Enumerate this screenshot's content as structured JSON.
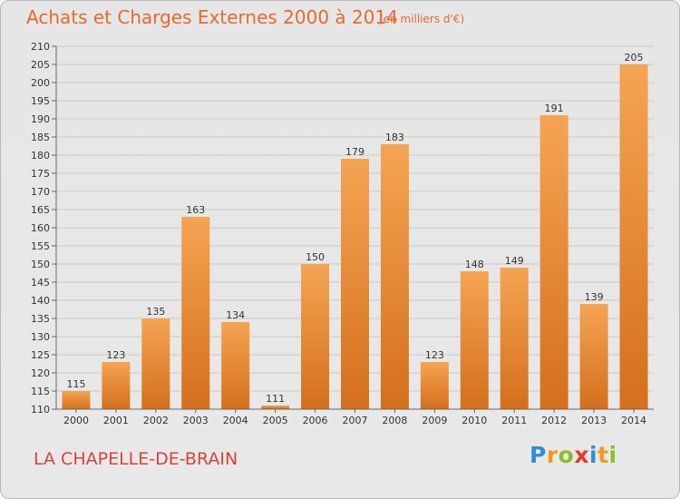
{
  "header": {
    "title": "Achats et Charges Externes 2000 à 2014",
    "unit_note": "(en milliers d'€)"
  },
  "footer": {
    "commune": "LA CHAPELLE-DE-BRAIN",
    "logo_letters": [
      {
        "char": "P",
        "color": "#2f8fd4"
      },
      {
        "char": "r",
        "color": "#f29a1f"
      },
      {
        "char": "o",
        "color": "#8bbd2a"
      },
      {
        "char": "x",
        "color": "#e8352a"
      },
      {
        "char": "i",
        "color": "#2f8fd4"
      },
      {
        "char": "t",
        "color": "#f29a1f"
      },
      {
        "char": "i",
        "color": "#8bbd2a"
      }
    ]
  },
  "colors": {
    "title": "#e8692e",
    "commune": "#d8433a",
    "bar_light": "#f5a453",
    "bar_dark": "#d46f1c"
  },
  "chart_data": {
    "type": "bar",
    "title": "Achats et Charges Externes 2000 à 2014",
    "categories": [
      "2000",
      "2001",
      "2002",
      "2003",
      "2004",
      "2005",
      "2006",
      "2007",
      "2008",
      "2009",
      "2010",
      "2011",
      "2012",
      "2013",
      "2014"
    ],
    "values": [
      115,
      123,
      135,
      163,
      134,
      111,
      150,
      179,
      183,
      123,
      148,
      149,
      191,
      139,
      205
    ],
    "ylim": [
      110,
      210
    ],
    "yticks": [
      110,
      115,
      120,
      125,
      130,
      135,
      140,
      145,
      150,
      155,
      160,
      165,
      170,
      175,
      180,
      185,
      190,
      195,
      200,
      205,
      210
    ],
    "grid": true
  }
}
